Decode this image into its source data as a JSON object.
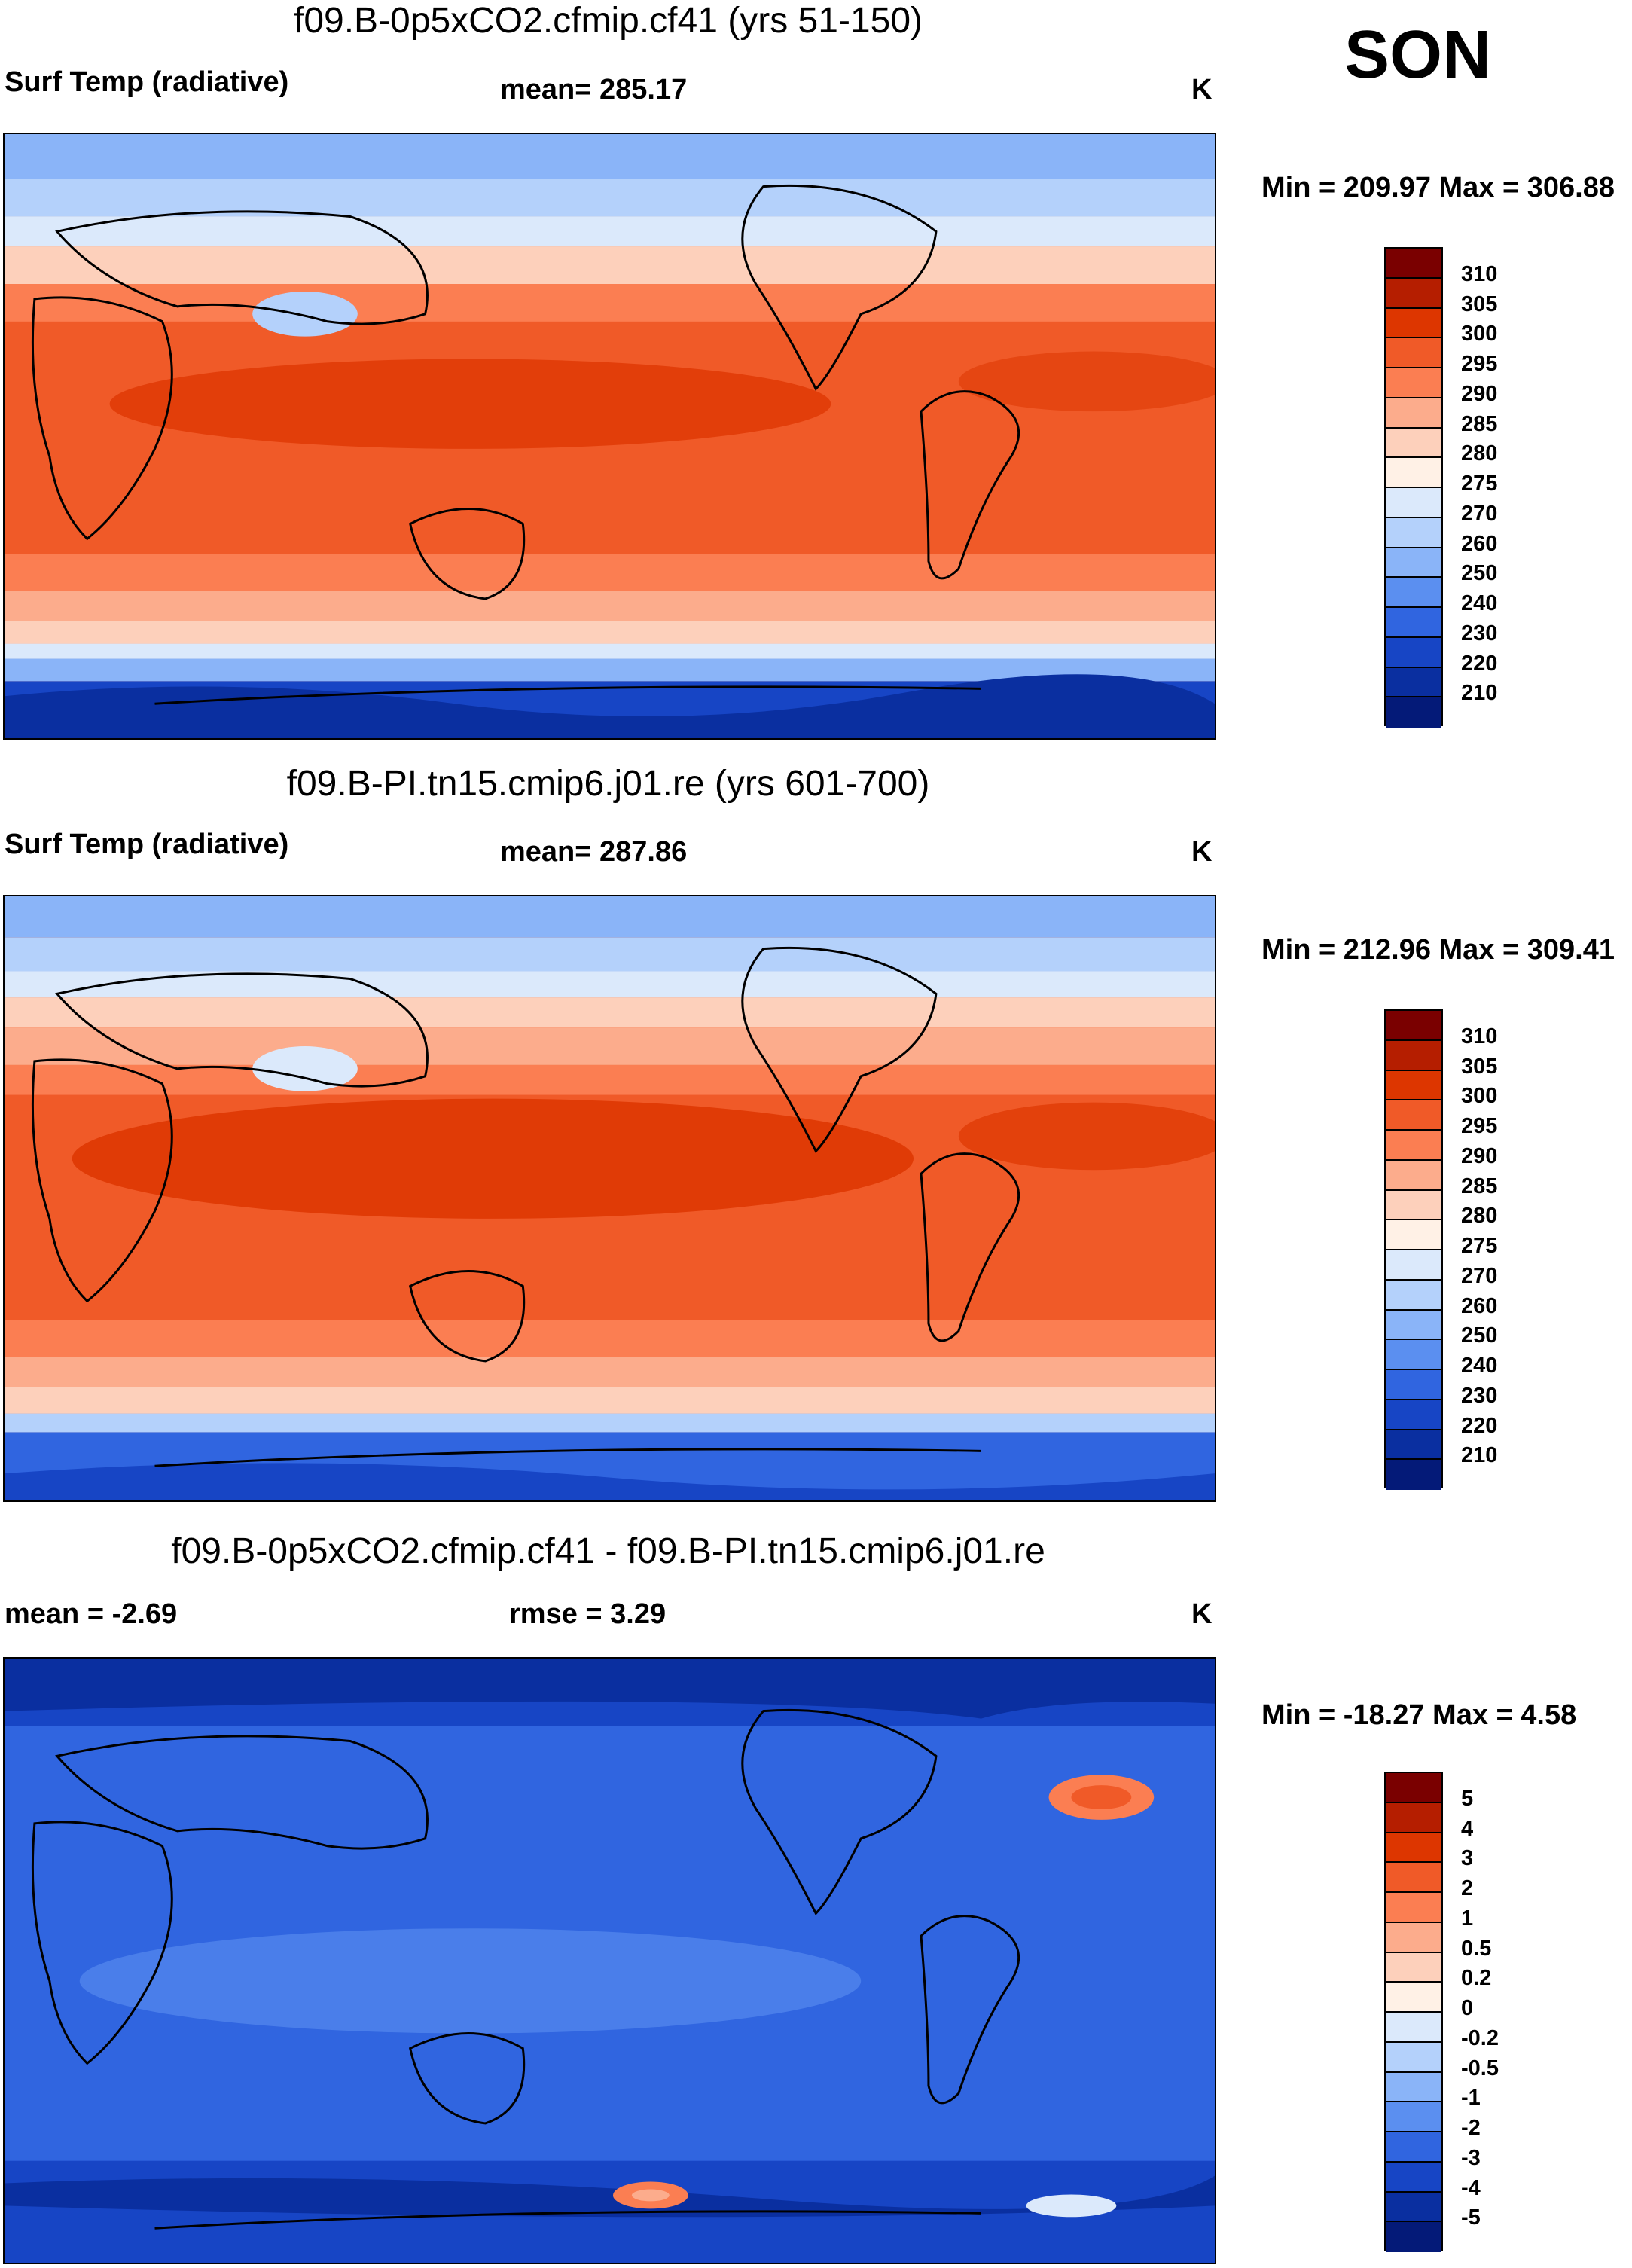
{
  "season": "SON",
  "panels": [
    {
      "title": "f09.B-0p5xCO2.cfmip.cf41 (yrs 51-150)",
      "left_label": "Surf Temp (radiative)",
      "center_label": "mean= 285.17",
      "units": "K",
      "minmax": "Min = 209.97 Max = 306.88",
      "colorbar": {
        "ticks": [
          "310",
          "305",
          "300",
          "295",
          "290",
          "285",
          "280",
          "275",
          "270",
          "260",
          "250",
          "240",
          "230",
          "220",
          "210"
        ],
        "colors": [
          "#7a0000",
          "#b51e00",
          "#dd3600",
          "#f05a28",
          "#fb7e52",
          "#fcac8c",
          "#fdd0bb",
          "#fff1e6",
          "#dbe9fb",
          "#b4d1fb",
          "#8ab4f8",
          "#5b8ff0",
          "#3065e0",
          "#1745c5",
          "#0a2fa0",
          "#041a78"
        ]
      }
    },
    {
      "title": "f09.B-PI.tn15.cmip6.j01.re (yrs 601-700)",
      "left_label": "Surf Temp (radiative)",
      "center_label": "mean= 287.86",
      "units": "K",
      "minmax": "Min = 212.96 Max = 309.41",
      "colorbar": {
        "ticks": [
          "310",
          "305",
          "300",
          "295",
          "290",
          "285",
          "280",
          "275",
          "270",
          "260",
          "250",
          "240",
          "230",
          "220",
          "210"
        ],
        "colors": [
          "#7a0000",
          "#b51e00",
          "#dd3600",
          "#f05a28",
          "#fb7e52",
          "#fcac8c",
          "#fdd0bb",
          "#fff1e6",
          "#dbe9fb",
          "#b4d1fb",
          "#8ab4f8",
          "#5b8ff0",
          "#3065e0",
          "#1745c5",
          "#0a2fa0",
          "#041a78"
        ]
      }
    },
    {
      "title": "f09.B-0p5xCO2.cfmip.cf41 - f09.B-PI.tn15.cmip6.j01.re",
      "left_label": "mean =  -2.69",
      "center_label": "rmse =    3.29",
      "units": "K",
      "minmax": "Min = -18.27 Max =   4.58",
      "colorbar": {
        "ticks": [
          "5",
          "4",
          "3",
          "2",
          "1",
          "0.5",
          "0.2",
          "0",
          "-0.2",
          "-0.5",
          "-1",
          "-2",
          "-3",
          "-4",
          "-5"
        ],
        "colors": [
          "#7a0000",
          "#b51e00",
          "#dd3600",
          "#f05a28",
          "#fb7e52",
          "#fcac8c",
          "#fdd0bb",
          "#fff1e6",
          "#dbe9fb",
          "#b4d1fb",
          "#8ab4f8",
          "#5b8ff0",
          "#3065e0",
          "#1745c5",
          "#0a2fa0",
          "#041a78"
        ]
      }
    }
  ]
}
